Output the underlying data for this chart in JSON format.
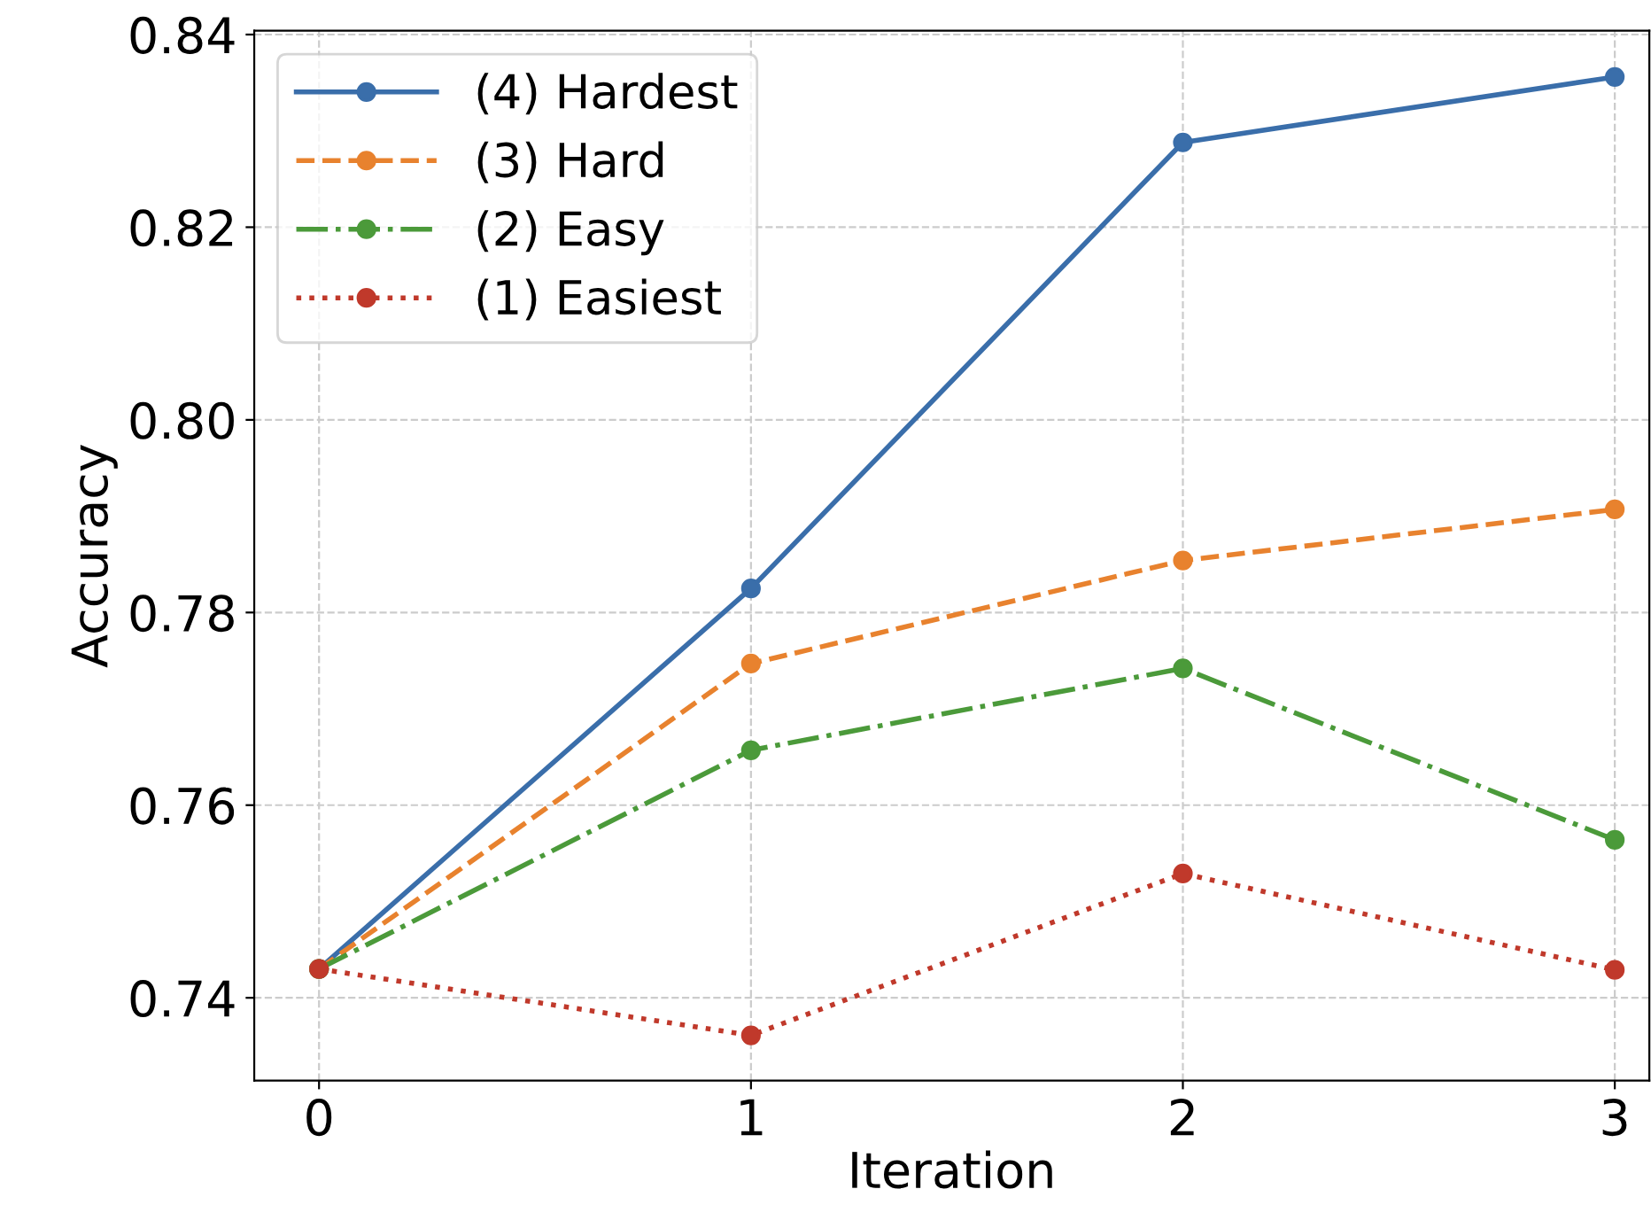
{
  "chart_data": {
    "type": "line",
    "xlabel": "Iteration",
    "ylabel": "Accuracy",
    "x": [
      0,
      1,
      2,
      3
    ],
    "series": [
      {
        "name": "(4) Hardest",
        "color": "#3a6eaa",
        "line_style": "solid",
        "values": [
          0.743,
          0.7825,
          0.8288,
          0.8356
        ]
      },
      {
        "name": "(3) Hard",
        "color": "#e8822e",
        "line_style": "dashed",
        "values": [
          0.743,
          0.7747,
          0.7854,
          0.7907
        ]
      },
      {
        "name": "(2) Easy",
        "color": "#4b9a3a",
        "line_style": "dashdot",
        "values": [
          0.743,
          0.7657,
          0.7742,
          0.7564
        ]
      },
      {
        "name": "(1) Easiest",
        "color": "#c0392b",
        "line_style": "dotted",
        "values": [
          0.743,
          0.7361,
          0.7529,
          0.7429
        ]
      }
    ],
    "xlim": [
      -0.15,
      3.08
    ],
    "xticks": [
      0,
      1,
      2,
      3
    ],
    "ylim": [
      0.7314,
      0.8404
    ],
    "yticks": [
      {
        "value": 0.74,
        "label": "0.74"
      },
      {
        "value": 0.76,
        "label": "0.76"
      },
      {
        "value": 0.78,
        "label": "0.78"
      },
      {
        "value": 0.8,
        "label": "0.80"
      },
      {
        "value": 0.82,
        "label": "0.82"
      },
      {
        "value": 0.84,
        "label": "0.84"
      }
    ],
    "grid": true,
    "legend": "top left",
    "marker": "circle"
  }
}
